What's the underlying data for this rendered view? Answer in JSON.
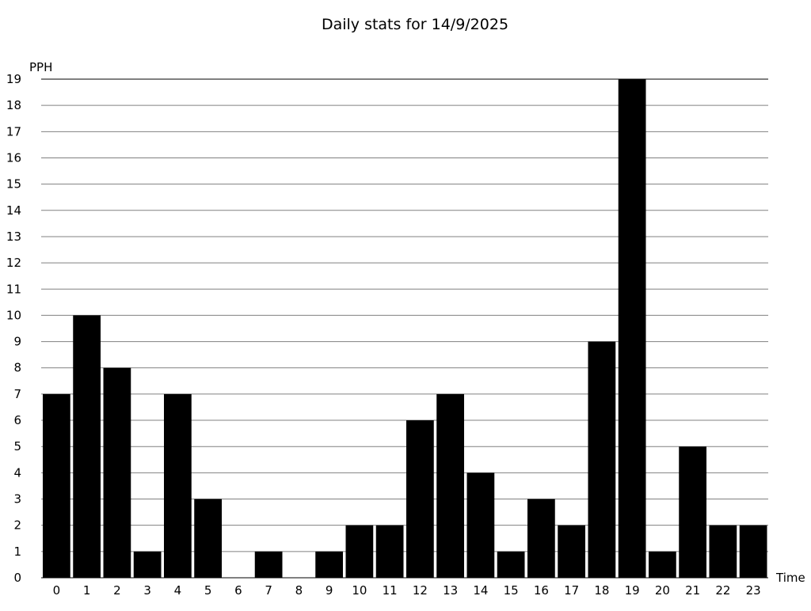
{
  "chart_data": {
    "type": "bar",
    "title": "Daily stats for 14/9/2025",
    "xlabel": "Time",
    "ylabel": "PPH",
    "categories": [
      "0",
      "1",
      "2",
      "3",
      "4",
      "5",
      "6",
      "7",
      "8",
      "9",
      "10",
      "11",
      "12",
      "13",
      "14",
      "15",
      "16",
      "17",
      "18",
      "19",
      "20",
      "21",
      "22",
      "23"
    ],
    "values": [
      7,
      10,
      8,
      1,
      7,
      3,
      0,
      1,
      0,
      1,
      2,
      2,
      6,
      7,
      4,
      1,
      3,
      2,
      9,
      19,
      1,
      5,
      2,
      2
    ],
    "ylim": [
      0,
      19
    ],
    "yticks": [
      0,
      1,
      2,
      3,
      4,
      5,
      6,
      7,
      8,
      9,
      10,
      11,
      12,
      13,
      14,
      15,
      16,
      17,
      18,
      19
    ],
    "grid": true,
    "bar_color": "#000000",
    "grid_color": "#808080"
  }
}
